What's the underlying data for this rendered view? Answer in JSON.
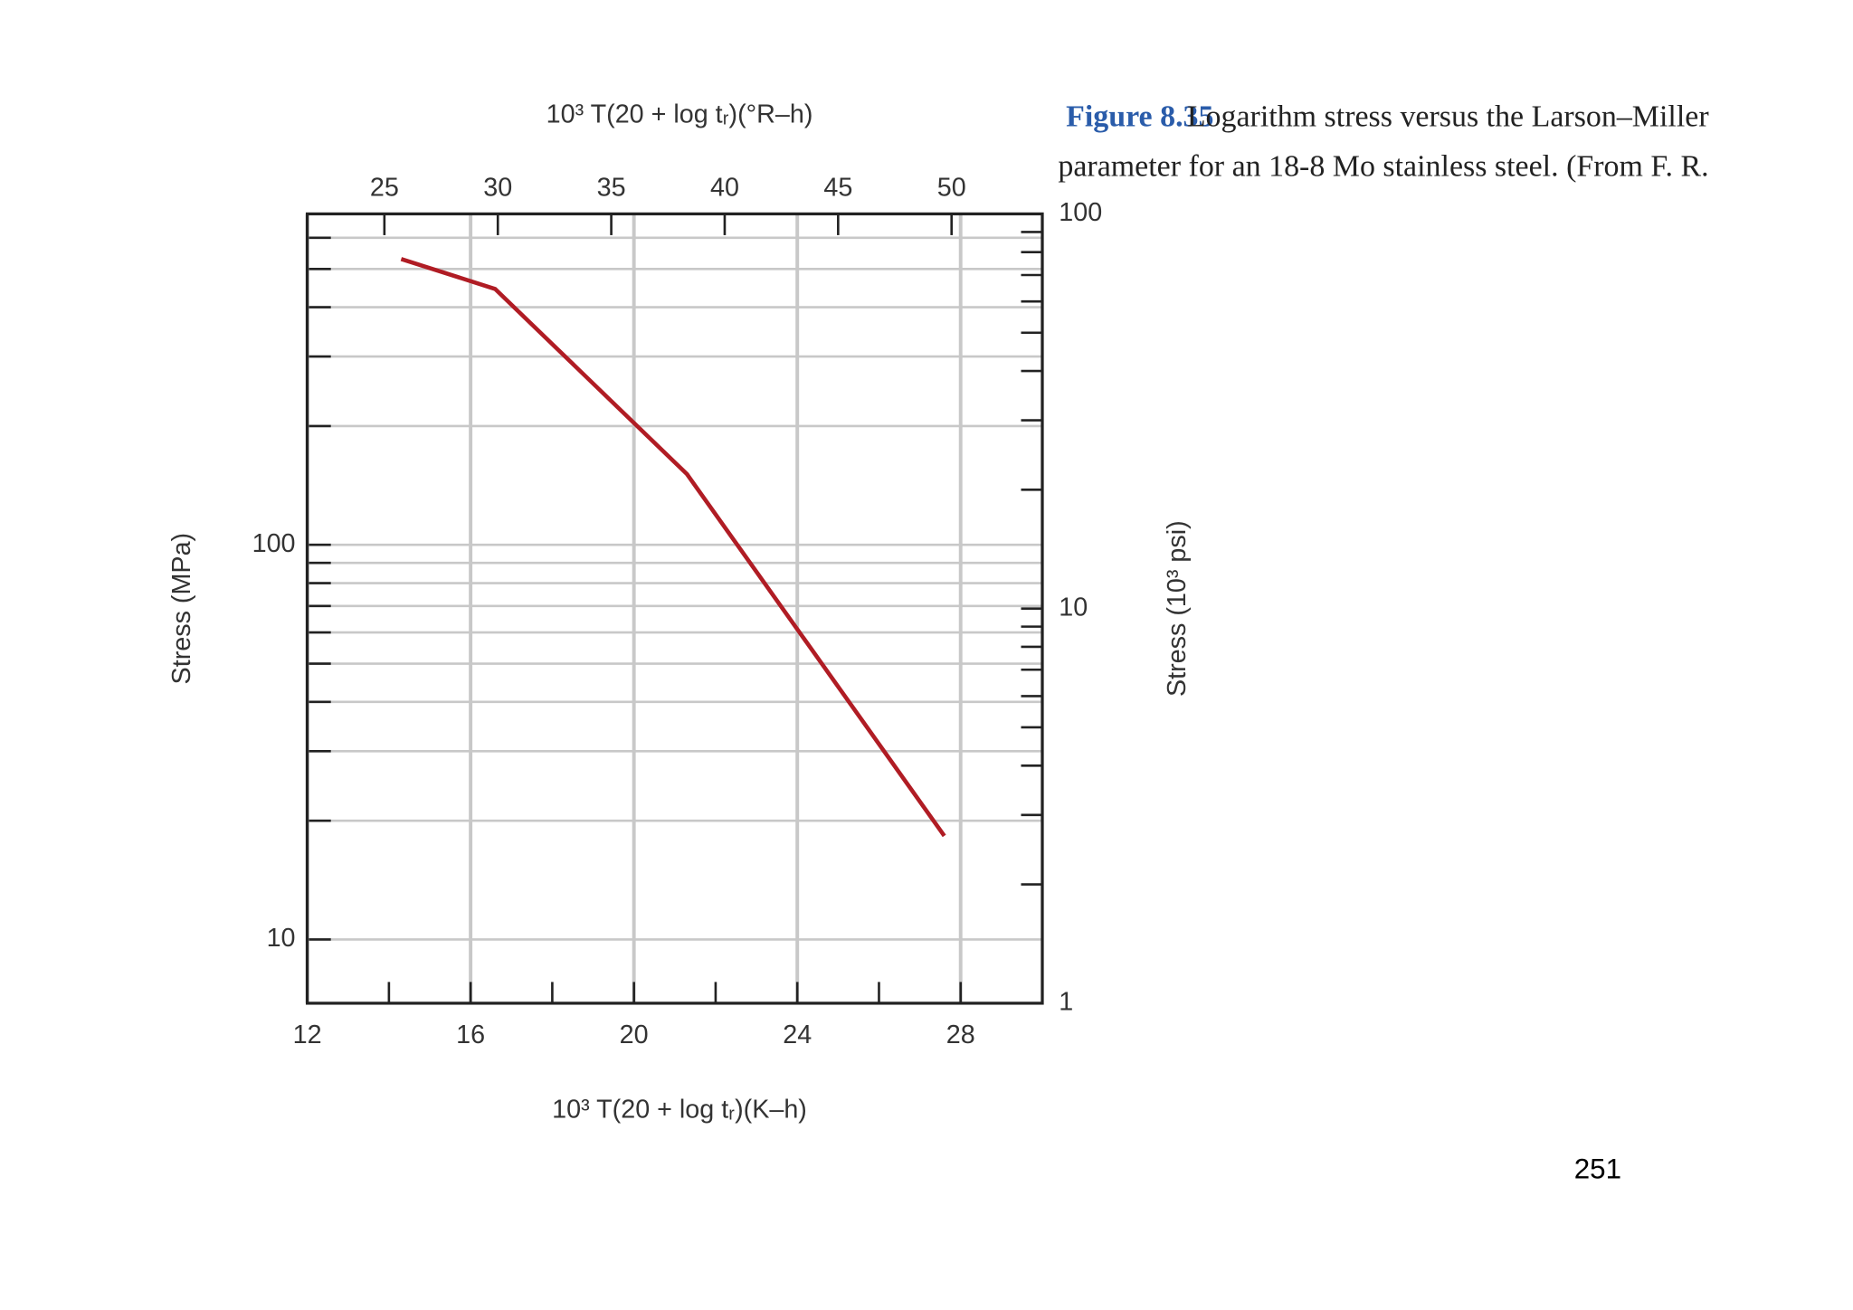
{
  "chart_data": {
    "type": "line",
    "x": [
      14.3,
      16.6,
      21.3,
      27.6
    ],
    "values": [
      530,
      445,
      151,
      18.3
    ],
    "color": "#b01c24",
    "xlim": [
      12,
      30
    ],
    "xticks": [
      12,
      16,
      20,
      24,
      28
    ],
    "xminorticks": [
      14,
      18,
      22,
      26
    ],
    "xlabel": "10³ T(20 + log tᵣ)(K–h)",
    "x2lim": [
      21.6,
      54
    ],
    "x2ticks": [
      25,
      30,
      35,
      40,
      45,
      50
    ],
    "x2label": "10³ T(20 + log tᵣ)(°R–h)",
    "yscale": "log",
    "ylim": [
      6.895,
      689.5
    ],
    "yticks": [
      10,
      100
    ],
    "yminorticks": [
      20,
      30,
      40,
      50,
      60,
      70,
      80,
      90,
      200,
      300,
      400,
      500,
      600
    ],
    "ylabel": "Stress (MPa)",
    "y2lim": [
      1,
      100
    ],
    "y2ticks": [
      1,
      10,
      100
    ],
    "y2minorticks": [
      2,
      3,
      4,
      5,
      6,
      7,
      8,
      9,
      20,
      30,
      40,
      50,
      60,
      70,
      80,
      90
    ],
    "y2label": "Stress (10³ psi)",
    "grid": true
  },
  "caption": {
    "label": "Figure 8.35",
    "lines": [
      "Logarithm stress versus the Larson–Miller",
      "parameter for an 18-8 Mo stainless steel. (From F. R."
    ]
  },
  "page_number": "251"
}
